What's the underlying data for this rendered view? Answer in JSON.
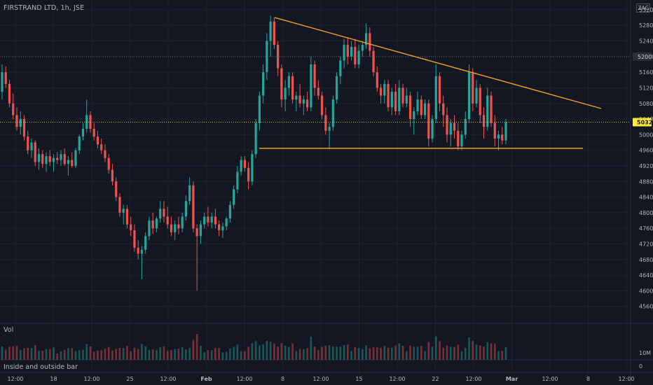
{
  "header": {
    "symbol": "FIRSTRAND LTD",
    "interval": "1h",
    "exchange": "JSE",
    "currency": "ZAC"
  },
  "volume_pane": {
    "label": "Vol",
    "axis_label": "10M",
    "zero_label": "0"
  },
  "study_pane": {
    "label": "Inside and outside bar"
  },
  "price_labels": {
    "last": "5032",
    "marked": "5200"
  },
  "colors": {
    "background": "#131722",
    "up": "#26a69a",
    "down": "#ef5350",
    "trendline": "#f59f26",
    "last_price": "#ffeb3b"
  },
  "chart_data": {
    "type": "candlestick",
    "title": "FIRSTRAND LTD, 1h, JSE",
    "y_axis": {
      "range": [
        4520,
        5345
      ],
      "ticks": [
        "5320",
        "5280",
        "5240",
        "5200",
        "5160",
        "5120",
        "5080",
        "5040",
        "5000",
        "4960",
        "4920",
        "4880",
        "4840",
        "4800",
        "4760",
        "4720",
        "4680",
        "4640",
        "4600",
        "4560"
      ]
    },
    "x_axis": {
      "ticks": [
        "12:00",
        "18",
        "12:00",
        "25",
        "12:00",
        "Feb",
        "12:00",
        "8",
        "12:00",
        "15",
        "12:00",
        "22",
        "12:00",
        "Mar",
        "12:00",
        "8",
        "12:00"
      ]
    },
    "last_price": 5032,
    "marked_price": 5200,
    "drawings": [
      {
        "type": "trendline",
        "name": "descending resistance",
        "from": [
          "Feb 6 16:00",
          5300
        ],
        "to": [
          "Mar 9 12:00",
          5067
        ]
      },
      {
        "type": "horizontal",
        "name": "support",
        "from": [
          "Feb 4 15:00",
          4965
        ],
        "to": [
          "Mar 8 15:00",
          4965
        ]
      }
    ],
    "candles": [
      {
        "o": 5110,
        "h": 5180,
        "l": 5090,
        "c": 5160
      },
      {
        "o": 5160,
        "h": 5175,
        "l": 5120,
        "c": 5130
      },
      {
        "o": 5130,
        "h": 5140,
        "l": 5070,
        "c": 5080
      },
      {
        "o": 5080,
        "h": 5105,
        "l": 5040,
        "c": 5050
      },
      {
        "o": 5050,
        "h": 5070,
        "l": 5010,
        "c": 5020
      },
      {
        "o": 5020,
        "h": 5060,
        "l": 5000,
        "c": 5040
      },
      {
        "o": 5040,
        "h": 5050,
        "l": 4985,
        "c": 4995
      },
      {
        "o": 4995,
        "h": 5010,
        "l": 4950,
        "c": 4960
      },
      {
        "o": 4960,
        "h": 4990,
        "l": 4940,
        "c": 4980
      },
      {
        "o": 4980,
        "h": 4985,
        "l": 4920,
        "c": 4930
      },
      {
        "o": 4930,
        "h": 4965,
        "l": 4910,
        "c": 4950
      },
      {
        "o": 4950,
        "h": 4960,
        "l": 4915,
        "c": 4925
      },
      {
        "o": 4925,
        "h": 4955,
        "l": 4905,
        "c": 4945
      },
      {
        "o": 4945,
        "h": 4960,
        "l": 4920,
        "c": 4930
      },
      {
        "o": 4930,
        "h": 4950,
        "l": 4905,
        "c": 4940
      },
      {
        "o": 4940,
        "h": 4955,
        "l": 4925,
        "c": 4935
      },
      {
        "o": 4935,
        "h": 4960,
        "l": 4920,
        "c": 4950
      },
      {
        "o": 4950,
        "h": 4965,
        "l": 4920,
        "c": 4925
      },
      {
        "o": 4925,
        "h": 4945,
        "l": 4895,
        "c": 4935
      },
      {
        "o": 4935,
        "h": 4955,
        "l": 4915,
        "c": 4920
      },
      {
        "o": 4920,
        "h": 4965,
        "l": 4915,
        "c": 4960
      },
      {
        "o": 4960,
        "h": 5000,
        "l": 4950,
        "c": 4995
      },
      {
        "o": 4995,
        "h": 5030,
        "l": 4985,
        "c": 5015
      },
      {
        "o": 5015,
        "h": 5090,
        "l": 5005,
        "c": 5050
      },
      {
        "o": 5050,
        "h": 5060,
        "l": 5005,
        "c": 5015
      },
      {
        "o": 5015,
        "h": 5030,
        "l": 4985,
        "c": 4995
      },
      {
        "o": 4995,
        "h": 5010,
        "l": 4965,
        "c": 4975
      },
      {
        "o": 4975,
        "h": 4990,
        "l": 4950,
        "c": 4960
      },
      {
        "o": 4960,
        "h": 4975,
        "l": 4930,
        "c": 4940
      },
      {
        "o": 4940,
        "h": 4950,
        "l": 4900,
        "c": 4910
      },
      {
        "o": 4910,
        "h": 4925,
        "l": 4870,
        "c": 4880
      },
      {
        "o": 4880,
        "h": 4890,
        "l": 4830,
        "c": 4840
      },
      {
        "o": 4840,
        "h": 4850,
        "l": 4790,
        "c": 4800
      },
      {
        "o": 4800,
        "h": 4820,
        "l": 4770,
        "c": 4810
      },
      {
        "o": 4810,
        "h": 4820,
        "l": 4760,
        "c": 4770
      },
      {
        "o": 4770,
        "h": 4790,
        "l": 4740,
        "c": 4755
      },
      {
        "o": 4755,
        "h": 4770,
        "l": 4700,
        "c": 4710
      },
      {
        "o": 4710,
        "h": 4730,
        "l": 4680,
        "c": 4695
      },
      {
        "o": 4695,
        "h": 4715,
        "l": 4630,
        "c": 4705
      },
      {
        "o": 4705,
        "h": 4750,
        "l": 4695,
        "c": 4740
      },
      {
        "o": 4740,
        "h": 4790,
        "l": 4730,
        "c": 4780
      },
      {
        "o": 4780,
        "h": 4800,
        "l": 4745,
        "c": 4760
      },
      {
        "o": 4760,
        "h": 4790,
        "l": 4750,
        "c": 4785
      },
      {
        "o": 4785,
        "h": 4830,
        "l": 4775,
        "c": 4810
      },
      {
        "o": 4810,
        "h": 4830,
        "l": 4775,
        "c": 4790
      },
      {
        "o": 4790,
        "h": 4815,
        "l": 4760,
        "c": 4770
      },
      {
        "o": 4770,
        "h": 4790,
        "l": 4740,
        "c": 4750
      },
      {
        "o": 4750,
        "h": 4780,
        "l": 4730,
        "c": 4770
      },
      {
        "o": 4770,
        "h": 4790,
        "l": 4745,
        "c": 4760
      },
      {
        "o": 4760,
        "h": 4800,
        "l": 4750,
        "c": 4790
      },
      {
        "o": 4790,
        "h": 4845,
        "l": 4780,
        "c": 4830
      },
      {
        "o": 4830,
        "h": 4890,
        "l": 4820,
        "c": 4870
      },
      {
        "o": 4870,
        "h": 4880,
        "l": 4750,
        "c": 4760
      },
      {
        "o": 4760,
        "h": 4770,
        "l": 4600,
        "c": 4740
      },
      {
        "o": 4740,
        "h": 4780,
        "l": 4720,
        "c": 4770
      },
      {
        "o": 4770,
        "h": 4800,
        "l": 4760,
        "c": 4790
      },
      {
        "o": 4790,
        "h": 4815,
        "l": 4765,
        "c": 4775
      },
      {
        "o": 4775,
        "h": 4800,
        "l": 4760,
        "c": 4790
      },
      {
        "o": 4790,
        "h": 4810,
        "l": 4760,
        "c": 4770
      },
      {
        "o": 4770,
        "h": 4780,
        "l": 4740,
        "c": 4755
      },
      {
        "o": 4755,
        "h": 4775,
        "l": 4735,
        "c": 4765
      },
      {
        "o": 4765,
        "h": 4790,
        "l": 4755,
        "c": 4785
      },
      {
        "o": 4785,
        "h": 4830,
        "l": 4775,
        "c": 4820
      },
      {
        "o": 4820,
        "h": 4870,
        "l": 4810,
        "c": 4860
      },
      {
        "o": 4860,
        "h": 4920,
        "l": 4850,
        "c": 4905
      },
      {
        "o": 4905,
        "h": 4945,
        "l": 4895,
        "c": 4935
      },
      {
        "o": 4935,
        "h": 4945,
        "l": 4905,
        "c": 4915
      },
      {
        "o": 4915,
        "h": 4930,
        "l": 4860,
        "c": 4880
      },
      {
        "o": 4880,
        "h": 4960,
        "l": 4870,
        "c": 4950
      },
      {
        "o": 4950,
        "h": 5040,
        "l": 4940,
        "c": 5030
      },
      {
        "o": 5030,
        "h": 5110,
        "l": 5010,
        "c": 5100
      },
      {
        "o": 5100,
        "h": 5180,
        "l": 5080,
        "c": 5160
      },
      {
        "o": 5160,
        "h": 5260,
        "l": 5140,
        "c": 5240
      },
      {
        "o": 5240,
        "h": 5305,
        "l": 5200,
        "c": 5290
      },
      {
        "o": 5290,
        "h": 5300,
        "l": 5220,
        "c": 5230
      },
      {
        "o": 5230,
        "h": 5240,
        "l": 5150,
        "c": 5170
      },
      {
        "o": 5170,
        "h": 5180,
        "l": 5070,
        "c": 5090
      },
      {
        "o": 5090,
        "h": 5140,
        "l": 5060,
        "c": 5120
      },
      {
        "o": 5120,
        "h": 5160,
        "l": 5100,
        "c": 5150
      },
      {
        "o": 5150,
        "h": 5160,
        "l": 5080,
        "c": 5090
      },
      {
        "o": 5090,
        "h": 5110,
        "l": 5060,
        "c": 5100
      },
      {
        "o": 5100,
        "h": 5130,
        "l": 5070,
        "c": 5080
      },
      {
        "o": 5080,
        "h": 5100,
        "l": 5050,
        "c": 5090
      },
      {
        "o": 5090,
        "h": 5110,
        "l": 5060,
        "c": 5070
      },
      {
        "o": 5070,
        "h": 5200,
        "l": 5060,
        "c": 5180
      },
      {
        "o": 5180,
        "h": 5190,
        "l": 5100,
        "c": 5120
      },
      {
        "o": 5120,
        "h": 5140,
        "l": 5090,
        "c": 5100
      },
      {
        "o": 5100,
        "h": 5110,
        "l": 5040,
        "c": 5050
      },
      {
        "o": 5050,
        "h": 5070,
        "l": 5000,
        "c": 5010
      },
      {
        "o": 5010,
        "h": 5030,
        "l": 4965,
        "c": 5020
      },
      {
        "o": 5020,
        "h": 5100,
        "l": 5010,
        "c": 5090
      },
      {
        "o": 5090,
        "h": 5160,
        "l": 5080,
        "c": 5150
      },
      {
        "o": 5150,
        "h": 5200,
        "l": 5130,
        "c": 5190
      },
      {
        "o": 5190,
        "h": 5245,
        "l": 5170,
        "c": 5230
      },
      {
        "o": 5230,
        "h": 5250,
        "l": 5180,
        "c": 5200
      },
      {
        "o": 5200,
        "h": 5240,
        "l": 5190,
        "c": 5225
      },
      {
        "o": 5225,
        "h": 5245,
        "l": 5170,
        "c": 5180
      },
      {
        "o": 5180,
        "h": 5230,
        "l": 5170,
        "c": 5215
      },
      {
        "o": 5215,
        "h": 5240,
        "l": 5200,
        "c": 5230
      },
      {
        "o": 5230,
        "h": 5285,
        "l": 5220,
        "c": 5260
      },
      {
        "o": 5260,
        "h": 5275,
        "l": 5200,
        "c": 5215
      },
      {
        "o": 5215,
        "h": 5225,
        "l": 5150,
        "c": 5160
      },
      {
        "o": 5160,
        "h": 5175,
        "l": 5110,
        "c": 5120
      },
      {
        "o": 5120,
        "h": 5130,
        "l": 5080,
        "c": 5100
      },
      {
        "o": 5100,
        "h": 5140,
        "l": 5080,
        "c": 5130
      },
      {
        "o": 5130,
        "h": 5140,
        "l": 5060,
        "c": 5070
      },
      {
        "o": 5070,
        "h": 5120,
        "l": 5050,
        "c": 5110
      },
      {
        "o": 5110,
        "h": 5130,
        "l": 5050,
        "c": 5060
      },
      {
        "o": 5060,
        "h": 5140,
        "l": 5050,
        "c": 5120
      },
      {
        "o": 5120,
        "h": 5130,
        "l": 5070,
        "c": 5080
      },
      {
        "o": 5080,
        "h": 5120,
        "l": 5070,
        "c": 5100
      },
      {
        "o": 5100,
        "h": 5110,
        "l": 5020,
        "c": 5040
      },
      {
        "o": 5040,
        "h": 5070,
        "l": 5000,
        "c": 5060
      },
      {
        "o": 5060,
        "h": 5110,
        "l": 5050,
        "c": 5090
      },
      {
        "o": 5090,
        "h": 5100,
        "l": 5040,
        "c": 5050
      },
      {
        "o": 5050,
        "h": 5090,
        "l": 5040,
        "c": 5080
      },
      {
        "o": 5080,
        "h": 5090,
        "l": 4970,
        "c": 4990
      },
      {
        "o": 4990,
        "h": 5050,
        "l": 4980,
        "c": 5040
      },
      {
        "o": 5040,
        "h": 5180,
        "l": 5030,
        "c": 5150
      },
      {
        "o": 5150,
        "h": 5160,
        "l": 5060,
        "c": 5080
      },
      {
        "o": 5080,
        "h": 5100,
        "l": 5020,
        "c": 5050
      },
      {
        "o": 5050,
        "h": 5070,
        "l": 4980,
        "c": 5000
      },
      {
        "o": 5000,
        "h": 5040,
        "l": 4970,
        "c": 5030
      },
      {
        "o": 5030,
        "h": 5050,
        "l": 4990,
        "c": 5010
      },
      {
        "o": 5010,
        "h": 5030,
        "l": 4960,
        "c": 4970
      },
      {
        "o": 4970,
        "h": 5010,
        "l": 4960,
        "c": 5000
      },
      {
        "o": 5000,
        "h": 5060,
        "l": 4990,
        "c": 5040
      },
      {
        "o": 5040,
        "h": 5180,
        "l": 5030,
        "c": 5160
      },
      {
        "o": 5160,
        "h": 5170,
        "l": 5060,
        "c": 5080
      },
      {
        "o": 5080,
        "h": 5140,
        "l": 5070,
        "c": 5120
      },
      {
        "o": 5120,
        "h": 5130,
        "l": 5030,
        "c": 5050
      },
      {
        "o": 5050,
        "h": 5070,
        "l": 4990,
        "c": 5020
      },
      {
        "o": 5020,
        "h": 5120,
        "l": 5010,
        "c": 5100
      },
      {
        "o": 5100,
        "h": 5110,
        "l": 5020,
        "c": 5030
      },
      {
        "o": 5030,
        "h": 5050,
        "l": 4970,
        "c": 4990
      },
      {
        "o": 4990,
        "h": 5010,
        "l": 4960,
        "c": 5000
      },
      {
        "o": 5000,
        "h": 5020,
        "l": 4975,
        "c": 4985
      },
      {
        "o": 4985,
        "h": 5040,
        "l": 4975,
        "c": 5032
      }
    ]
  }
}
